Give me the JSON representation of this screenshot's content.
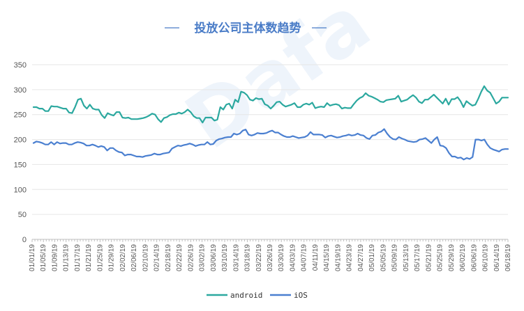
{
  "chart_data": {
    "type": "line",
    "title": "投放公司主体数趋势",
    "ylim": [
      0,
      350
    ],
    "yticks": [
      0,
      50,
      100,
      150,
      200,
      250,
      300,
      350
    ],
    "grid": true,
    "legend_position": "bottom",
    "watermark_text": "Dafa",
    "x_tick_labels": [
      "01/01/19",
      "01/05/19",
      "01/09/19",
      "01/13/19",
      "01/17/19",
      "01/21/19",
      "01/25/19",
      "01/29/19",
      "02/02/19",
      "02/06/19",
      "02/10/19",
      "02/14/19",
      "02/18/19",
      "02/22/19",
      "02/26/19",
      "03/02/19",
      "03/06/19",
      "03/10/19",
      "03/14/19",
      "03/18/19",
      "03/22/19",
      "03/26/19",
      "03/30/19",
      "04/03/19",
      "04/07/19",
      "04/11/19",
      "04/15/19",
      "04/19/19",
      "04/23/19",
      "04/27/19",
      "05/01/19",
      "05/05/19",
      "05/09/19",
      "05/13/19",
      "05/17/19",
      "05/21/19",
      "05/25/19",
      "05/29/19",
      "06/02/19",
      "06/06/19",
      "06/10/19",
      "06/14/19",
      "06/18/19"
    ],
    "series": [
      {
        "name": "android",
        "color": "#2ba89f",
        "values": [
          265,
          265,
          262,
          262,
          257,
          257,
          267,
          266,
          266,
          264,
          262,
          262,
          254,
          253,
          265,
          280,
          282,
          268,
          262,
          270,
          262,
          260,
          260,
          249,
          243,
          253,
          250,
          248,
          255,
          255,
          244,
          243,
          244,
          241,
          241,
          241,
          242,
          243,
          245,
          248,
          252,
          250,
          241,
          235,
          243,
          245,
          249,
          251,
          251,
          254,
          252,
          255,
          260,
          255,
          247,
          243,
          243,
          234,
          244,
          244,
          244,
          238,
          240,
          265,
          260,
          270,
          272,
          262,
          280,
          275,
          296,
          294,
          289,
          280,
          278,
          283,
          281,
          282,
          271,
          268,
          262,
          268,
          275,
          276,
          270,
          266,
          268,
          270,
          273,
          265,
          265,
          270,
          272,
          270,
          274,
          263,
          265,
          266,
          265,
          273,
          268,
          270,
          271,
          269,
          262,
          264,
          263,
          263,
          271,
          278,
          283,
          286,
          293,
          288,
          286,
          283,
          280,
          276,
          275,
          279,
          280,
          281,
          282,
          288,
          276,
          278,
          280,
          285,
          289,
          284,
          276,
          273,
          280,
          280,
          285,
          290,
          284,
          278,
          272,
          282,
          270,
          281,
          281,
          285,
          277,
          265,
          277,
          272,
          268,
          270,
          282,
          296,
          307,
          298,
          294,
          283,
          272,
          276,
          284,
          284
        ],
        "end_value": 284
      },
      {
        "name": "iOS",
        "color": "#4a7fd0",
        "values": [
          193,
          196,
          195,
          193,
          190,
          190,
          195,
          190,
          195,
          192,
          193,
          193,
          190,
          190,
          193,
          195,
          194,
          192,
          188,
          188,
          190,
          188,
          185,
          187,
          185,
          178,
          183,
          183,
          178,
          175,
          174,
          168,
          170,
          170,
          168,
          166,
          166,
          165,
          167,
          168,
          169,
          172,
          170,
          170,
          172,
          173,
          174,
          182,
          185,
          188,
          187,
          189,
          190,
          192,
          190,
          187,
          189,
          190,
          190,
          195,
          190,
          191,
          198,
          201,
          202,
          204,
          205,
          205,
          212,
          210,
          212,
          218,
          220,
          210,
          208,
          210,
          213,
          212,
          212,
          213,
          216,
          218,
          214,
          214,
          210,
          207,
          205,
          205,
          207,
          205,
          203,
          204,
          205,
          208,
          215,
          210,
          210,
          210,
          209,
          204,
          207,
          208,
          206,
          204,
          205,
          207,
          208,
          210,
          208,
          209,
          212,
          209,
          208,
          203,
          201,
          208,
          209,
          214,
          216,
          221,
          212,
          205,
          201,
          200,
          205,
          202,
          200,
          197,
          196,
          195,
          196,
          200,
          201,
          203,
          198,
          193,
          200,
          205,
          188,
          187,
          183,
          173,
          166,
          166,
          163,
          164,
          160,
          163,
          161,
          165,
          200,
          200,
          198,
          200,
          190,
          183,
          180,
          178,
          176,
          180,
          181
        ],
        "end_value": 181
      }
    ]
  },
  "legend": {
    "items": [
      {
        "label": "android",
        "color": "#2ba89f"
      },
      {
        "label": "iOS",
        "color": "#4a7fd0"
      }
    ]
  }
}
